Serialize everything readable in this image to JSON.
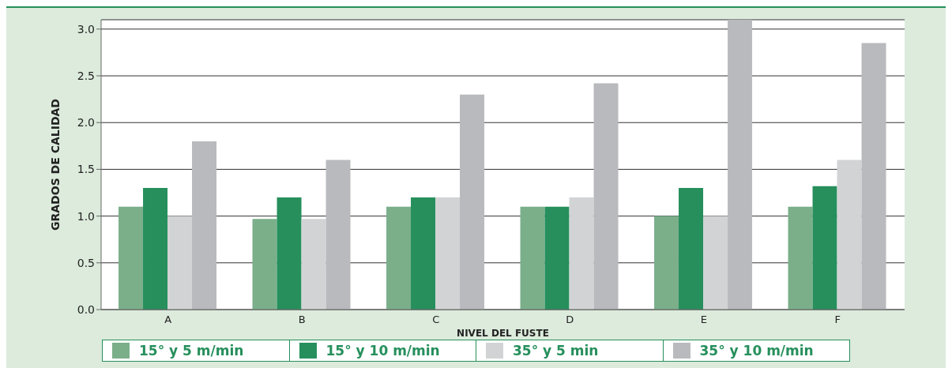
{
  "chart_data": {
    "type": "bar",
    "xlabel": "NIVEL DEL FUSTE",
    "ylabel": "GRADOS DE CALIDAD",
    "categories": [
      "A",
      "B",
      "C",
      "D",
      "E",
      "F"
    ],
    "series": [
      {
        "name": "15° y 5 m/min",
        "color": "#7aaf8a",
        "values": [
          1.1,
          0.97,
          1.1,
          1.1,
          1.0,
          1.1
        ]
      },
      {
        "name": "15° y 10 m/min",
        "color": "#268f5c",
        "values": [
          1.3,
          1.2,
          1.2,
          1.1,
          1.3,
          1.32
        ]
      },
      {
        "name": "35° y 5 min",
        "color": "#d1d3d4",
        "values": [
          1.0,
          0.97,
          1.2,
          1.2,
          1.0,
          1.6
        ]
      },
      {
        "name": "35° y 10 m/min",
        "color": "#b9babe",
        "values": [
          1.8,
          1.6,
          2.3,
          2.42,
          3.1,
          2.85
        ]
      }
    ],
    "ylim": [
      0,
      3.1
    ],
    "yticks": [
      {
        "value": 0,
        "label": "0.0"
      },
      {
        "value": 0.5,
        "label": "0.5"
      },
      {
        "value": 1,
        "label": "1.0"
      },
      {
        "value": 1.5,
        "label": "1.5"
      },
      {
        "value": 2,
        "label": "2.0"
      },
      {
        "value": 2.5,
        "label": "2.5"
      },
      {
        "value": 3,
        "label": "3.0"
      }
    ],
    "grid": "y",
    "legend": "bottom"
  }
}
